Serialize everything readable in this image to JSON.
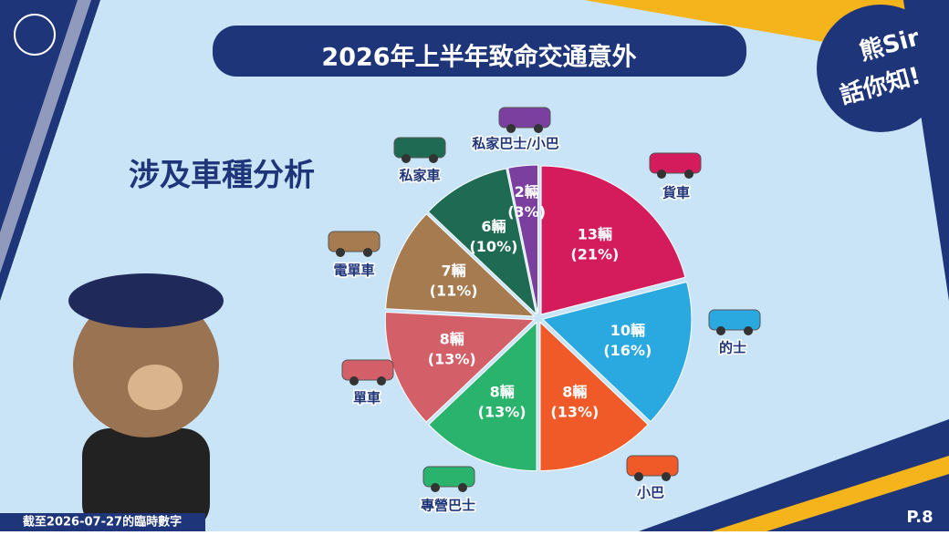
{
  "header": {
    "title": "2026年上半年致命交通意外",
    "subtitle": "涉及車種分析",
    "badge_line1": "熊Sir",
    "badge_line2": "話你知!"
  },
  "footer": {
    "note": "截至2026-07-27的臨時數字",
    "page": "P.8"
  },
  "chart_data": {
    "type": "pie",
    "categories": [
      "貨車",
      "的士",
      "小巴",
      "專營巴士",
      "單車",
      "電單車",
      "私家車",
      "私家巴士/小巴"
    ],
    "values": [
      13,
      10,
      8,
      8,
      8,
      7,
      6,
      2
    ],
    "value_labels": [
      "13輛",
      "10輛",
      "8輛",
      "8輛",
      "8輛",
      "7輛",
      "6輛",
      "2輛"
    ],
    "shares": [
      21,
      16,
      13,
      13,
      13,
      11,
      10,
      3
    ],
    "share_labels": [
      "(21%)",
      "(16%)",
      "(13%)",
      "(13%)",
      "(13%)",
      "(11%)",
      "(10%)",
      "(3%)"
    ],
    "colors": [
      "#d41c5c",
      "#2aa8e0",
      "#f05a28",
      "#2ab36c",
      "#d35f68",
      "#a67b50",
      "#1e6a52",
      "#7b3fa0"
    ]
  }
}
